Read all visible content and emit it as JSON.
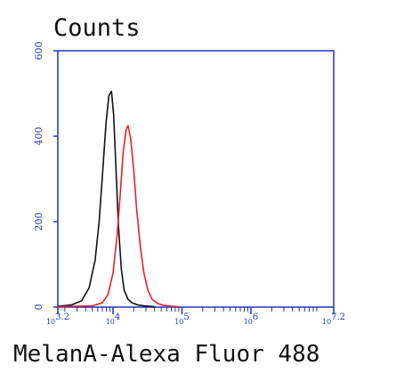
{
  "chart_data": {
    "type": "line",
    "title": "",
    "ylabel": "Counts",
    "xlabel": "MelanA-Alexa Fluor 488",
    "x_scale": "log",
    "xlim": [
      1585,
      15849000
    ],
    "ylim": [
      0,
      600
    ],
    "y_ticks": [
      0,
      200,
      400,
      600
    ],
    "y_tick_labels": [
      "0",
      "200",
      "400",
      "600"
    ],
    "x_ticks": [
      1585,
      10000,
      100000,
      1000000,
      15849000
    ],
    "x_tick_labels": [
      "10^3.2",
      "10^4",
      "10^5",
      "10^6",
      "10^7.2"
    ],
    "grid": false,
    "colors": {
      "axes": "#2233bb",
      "control": "#111111",
      "stained": "#e8202a"
    },
    "series": [
      {
        "color": "#111111",
        "x": [
          1600,
          2500,
          3500,
          4500,
          5500,
          6300,
          7100,
          7900,
          8700,
          9500,
          10200,
          11000,
          12000,
          13200,
          14500,
          16500,
          19000,
          23000,
          28000,
          40000
        ],
        "y": [
          2,
          5,
          15,
          45,
          110,
          200,
          320,
          430,
          495,
          505,
          450,
          330,
          190,
          90,
          40,
          18,
          10,
          5,
          3,
          1
        ]
      },
      {
        "color": "#e8202a",
        "x": [
          1600,
          5000,
          7000,
          8500,
          10000,
          11500,
          12800,
          14000,
          15500,
          16500,
          18000,
          20000,
          22000,
          25000,
          28000,
          32000,
          37000,
          45000,
          55000,
          70000,
          90000
        ],
        "y": [
          1,
          3,
          10,
          30,
          80,
          170,
          270,
          360,
          415,
          425,
          395,
          320,
          230,
          140,
          80,
          40,
          18,
          8,
          4,
          2,
          1
        ]
      }
    ]
  }
}
